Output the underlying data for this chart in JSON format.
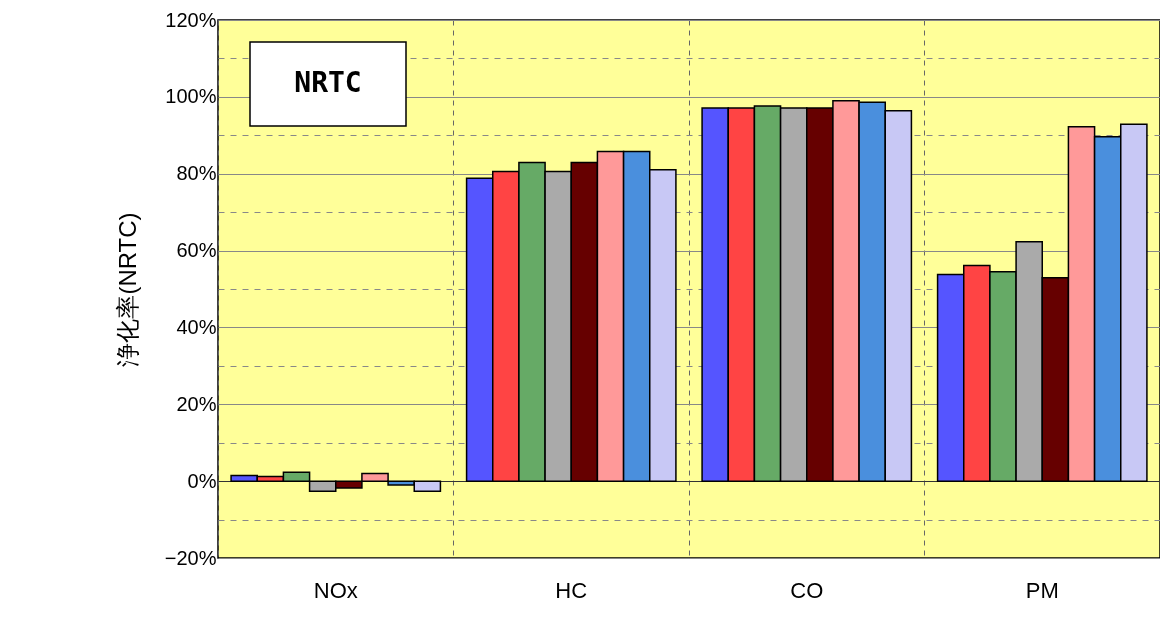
{
  "chart_data": {
    "type": "bar",
    "ylabel": "浄化率(NRTC)",
    "annotations": [
      "NRTC"
    ],
    "categories": [
      "NOx",
      "HC",
      "CO",
      "PM"
    ],
    "series": [
      {
        "color": "#5555ff",
        "values": [
          1.5,
          78.8,
          97.1,
          53.8
        ]
      },
      {
        "color": "#ff4444",
        "values": [
          1.2,
          80.6,
          97.1,
          56.1
        ]
      },
      {
        "color": "#66aa66",
        "values": [
          2.3,
          82.9,
          97.6,
          54.5
        ]
      },
      {
        "color": "#aaaaaa",
        "values": [
          -2.6,
          80.6,
          97.1,
          62.3
        ]
      },
      {
        "color": "#660000",
        "values": [
          -1.8,
          82.9,
          97.1,
          52.9
        ]
      },
      {
        "color": "#ff9999",
        "values": [
          2.0,
          85.8,
          99.0,
          92.2
        ]
      },
      {
        "color": "#4a8fdd",
        "values": [
          -1.0,
          85.8,
          98.6,
          89.6
        ]
      },
      {
        "color": "#c8c8f5",
        "values": [
          -2.6,
          81.0,
          96.4,
          92.9
        ]
      }
    ],
    "ylim": [
      -20,
      120
    ],
    "yticks": [
      {
        "value": -20,
        "label": "−20%"
      },
      {
        "value": -10,
        "label": null
      },
      {
        "value": 0,
        "label": "0%"
      },
      {
        "value": 10,
        "label": null
      },
      {
        "value": 20,
        "label": "20%"
      },
      {
        "value": 30,
        "label": null
      },
      {
        "value": 40,
        "label": "40%"
      },
      {
        "value": 50,
        "label": null
      },
      {
        "value": 60,
        "label": "60%"
      },
      {
        "value": 70,
        "label": null
      },
      {
        "value": 80,
        "label": "80%"
      },
      {
        "value": 90,
        "label": null
      },
      {
        "value": 100,
        "label": "100%"
      },
      {
        "value": 110,
        "label": null
      },
      {
        "value": 120,
        "label": "120%"
      }
    ],
    "grid": true
  }
}
